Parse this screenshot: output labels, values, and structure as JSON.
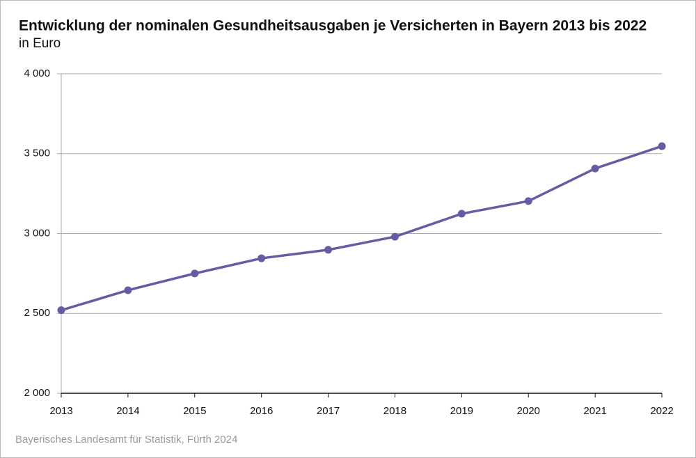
{
  "chart_data": {
    "type": "line",
    "title": "Entwicklung der nominalen Gesundheitsausgaben je Versicherten in Bayern 2013 bis 2022",
    "subtitle": "in Euro",
    "source": "Bayerisches Landesamt für Statistik, Fürth 2024",
    "x": [
      2013,
      2014,
      2015,
      2016,
      2017,
      2018,
      2019,
      2020,
      2021,
      2022
    ],
    "xlim": [
      2013,
      2022
    ],
    "xticks": [
      2013,
      2014,
      2015,
      2016,
      2017,
      2018,
      2019,
      2020,
      2021,
      2022
    ],
    "series": [
      {
        "name": "Gesundheitsausgaben je Versicherten",
        "color": "#6a5aa3",
        "values": [
          2520,
          2645,
          2750,
          2845,
          2898,
          2980,
          3124,
          3203,
          3407,
          3547
        ]
      }
    ],
    "ylim": [
      2000,
      4000
    ],
    "yticks": [
      {
        "value": 2000,
        "label": "2 000"
      },
      {
        "value": 2500,
        "label": "2 500"
      },
      {
        "value": 3000,
        "label": "3 000"
      },
      {
        "value": 3500,
        "label": "3 500"
      },
      {
        "value": 4000,
        "label": "4 000"
      }
    ],
    "grid": true
  }
}
